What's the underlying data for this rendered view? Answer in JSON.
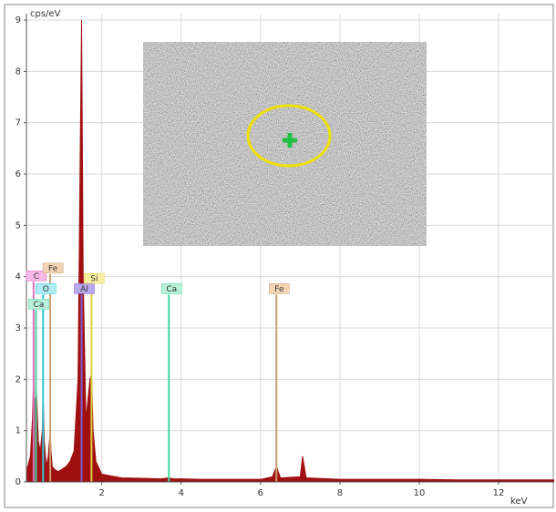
{
  "chart_data": {
    "type": "area",
    "y_label": "cps/eV",
    "x_label": "keV",
    "xlim": [
      0.1,
      13.4
    ],
    "ylim": [
      0,
      9
    ],
    "xticks": [
      2,
      4,
      6,
      8,
      10,
      12
    ],
    "yticks": [
      0,
      1,
      2,
      3,
      4,
      5,
      6,
      7,
      8,
      9
    ],
    "grid": true,
    "series": [
      {
        "color": "#a01010",
        "x": [
          0.1,
          0.2,
          0.25,
          0.28,
          0.3,
          0.35,
          0.4,
          0.45,
          0.5,
          0.52,
          0.55,
          0.6,
          0.65,
          0.7,
          0.72,
          0.75,
          0.8,
          0.9,
          1.0,
          1.1,
          1.2,
          1.3,
          1.4,
          1.45,
          1.49,
          1.53,
          1.6,
          1.7,
          1.74,
          1.78,
          1.85,
          2.0,
          2.5,
          3.0,
          3.5,
          3.69,
          3.8,
          4.0,
          4.5,
          5.0,
          5.5,
          6.0,
          6.3,
          6.4,
          6.5,
          7.0,
          7.06,
          7.15,
          8,
          9,
          10,
          11,
          12,
          13,
          13.4
        ],
        "values": [
          0.2,
          0.5,
          1.2,
          2.0,
          1.5,
          1.8,
          0.8,
          0.6,
          1.0,
          1.8,
          0.8,
          0.3,
          0.5,
          1.0,
          0.6,
          0.3,
          0.25,
          0.2,
          0.25,
          0.3,
          0.4,
          0.6,
          2.0,
          6,
          9,
          4,
          1.2,
          2.0,
          2.1,
          1.0,
          0.4,
          0.15,
          0.08,
          0.07,
          0.06,
          0.08,
          0.06,
          0.06,
          0.05,
          0.05,
          0.05,
          0.05,
          0.1,
          0.3,
          0.08,
          0.1,
          0.5,
          0.08,
          0.05,
          0.05,
          0.05,
          0.04,
          0.04,
          0.04,
          0.04
        ]
      }
    ],
    "markers": [
      {
        "label": "Ca",
        "energy": 0.34,
        "height": 3.35,
        "color": "#40d8a0",
        "box": "#b8f0d8"
      },
      {
        "label": "C",
        "energy": 0.28,
        "height": 3.9,
        "color": "#e070c0",
        "box": "#f4b8e8"
      },
      {
        "label": "O",
        "energy": 0.52,
        "height": 3.65,
        "color": "#30c8d8",
        "box": "#b0ecf4"
      },
      {
        "label": "Fe",
        "energy": 0.7,
        "height": 4.05,
        "color": "#c8a070",
        "box": "#f4d4b4"
      },
      {
        "label": "Al",
        "energy": 1.49,
        "height": 3.65,
        "color": "#8060d0",
        "box": "#b8a8f0"
      },
      {
        "label": "Si",
        "energy": 1.74,
        "height": 3.85,
        "color": "#e0d040",
        "box": "#f8f0a0"
      },
      {
        "label": "Ca",
        "energy": 3.69,
        "height": 3.65,
        "color": "#40d8a0",
        "box": "#b8f0d8"
      },
      {
        "label": "Fe",
        "energy": 6.4,
        "height": 3.65,
        "color": "#c8a070",
        "box": "#f4d4b4"
      }
    ]
  }
}
